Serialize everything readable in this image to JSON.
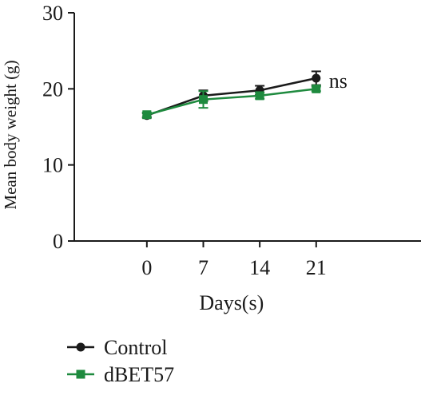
{
  "chart_data": {
    "type": "line",
    "xlabel": "Days(s)",
    "ylabel": "Mean body weight (g)",
    "x": [
      0,
      7,
      14,
      21
    ],
    "xticks": [
      "0",
      "7",
      "14",
      "21"
    ],
    "yticks": [
      "0",
      "10",
      "20",
      "30"
    ],
    "ylim": [
      0,
      30
    ],
    "xlim": [
      -9,
      34
    ],
    "grid": false,
    "legend_position": "bottom-left",
    "series": [
      {
        "name": "Control",
        "values": [
          16.5,
          19.1,
          19.8,
          21.4
        ],
        "errors": [
          0.3,
          0.7,
          0.6,
          0.9
        ],
        "color": "#1a1a1a",
        "marker": "circle"
      },
      {
        "name": "dBET57",
        "values": [
          16.6,
          18.6,
          19.1,
          20.0
        ],
        "errors": [
          0.3,
          1.1,
          0.4,
          0.3
        ],
        "color": "#1e8a3e",
        "marker": "square"
      }
    ],
    "annotations": [
      {
        "text": "ns",
        "x": 21,
        "y": 21.4
      }
    ]
  }
}
